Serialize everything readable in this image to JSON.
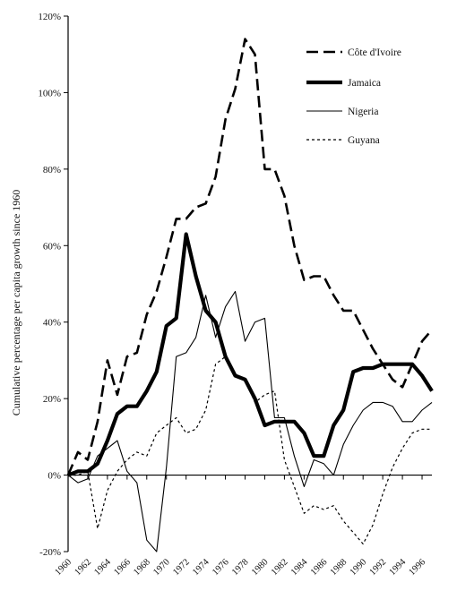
{
  "chart_data": {
    "type": "line",
    "title": "",
    "xlabel": "",
    "ylabel": "Cumulative percentage per capita growth since 1960",
    "xlim": [
      1960,
      1997
    ],
    "ylim": [
      -20,
      120
    ],
    "yticks": [
      -20,
      0,
      20,
      40,
      60,
      80,
      100,
      120
    ],
    "ytick_labels": [
      "-20%",
      "0%",
      "20%",
      "40%",
      "60%",
      "80%",
      "100%",
      "120%"
    ],
    "xticks": [
      1960,
      1962,
      1964,
      1966,
      1968,
      1970,
      1972,
      1974,
      1976,
      1978,
      1980,
      1982,
      1984,
      1986,
      1988,
      1990,
      1992,
      1994,
      1996
    ],
    "xtick_labels": [
      "1960",
      "1962",
      "1964",
      "1966",
      "1968",
      "1970",
      "1972",
      "1974",
      "1976",
      "1978",
      "1980",
      "1982",
      "1984",
      "1986",
      "1988",
      "1990",
      "1992",
      "1994",
      "1996"
    ],
    "grid": false,
    "legend_position": "top-right",
    "x": [
      1960,
      1961,
      1962,
      1963,
      1964,
      1965,
      1966,
      1967,
      1968,
      1969,
      1970,
      1971,
      1972,
      1973,
      1974,
      1975,
      1976,
      1977,
      1978,
      1979,
      1980,
      1981,
      1982,
      1983,
      1984,
      1985,
      1986,
      1987,
      1988,
      1989,
      1990,
      1991,
      1992,
      1993,
      1994,
      1995,
      1996,
      1997
    ],
    "series": [
      {
        "name": "Côte d'Ivoire",
        "style": "dashed",
        "color": "#000000",
        "values": [
          0,
          6,
          4,
          14,
          30,
          21,
          31,
          32,
          42,
          48,
          57,
          67,
          67,
          70,
          71,
          78,
          93,
          101,
          114,
          110,
          80,
          80,
          73,
          60,
          51,
          52,
          52,
          47,
          43,
          43,
          38,
          33,
          29,
          25,
          23,
          29,
          35,
          38
        ]
      },
      {
        "name": "Jamaica",
        "style": "thick",
        "color": "#000000",
        "values": [
          0,
          1,
          1,
          3,
          9,
          16,
          18,
          18,
          22,
          27,
          39,
          41,
          63,
          52,
          43,
          40,
          31,
          26,
          25,
          20,
          13,
          14,
          14,
          14,
          11,
          5,
          5,
          13,
          17,
          27,
          28,
          28,
          29,
          29,
          29,
          29,
          26,
          22
        ]
      },
      {
        "name": "Nigeria",
        "style": "thin",
        "color": "#000000",
        "values": [
          0,
          -2,
          -1,
          5,
          7,
          9,
          1,
          -2,
          -17,
          -20,
          2,
          31,
          32,
          36,
          47,
          36,
          44,
          48,
          35,
          40,
          41,
          15,
          15,
          5,
          -3,
          4,
          3,
          0,
          8,
          13,
          17,
          19,
          19,
          18,
          14,
          14,
          17,
          19
        ]
      },
      {
        "name": "Guyana",
        "style": "dotted",
        "color": "#000000",
        "values": [
          0,
          0,
          1,
          -14,
          -4,
          1,
          4,
          6,
          5,
          11,
          13,
          15,
          11,
          12,
          17,
          29,
          31,
          26,
          25,
          19,
          21,
          22,
          4,
          -3,
          -10,
          -8,
          -9,
          -8,
          -12,
          -15,
          -18,
          -13,
          -5,
          2,
          7,
          11,
          12,
          12
        ]
      }
    ]
  }
}
